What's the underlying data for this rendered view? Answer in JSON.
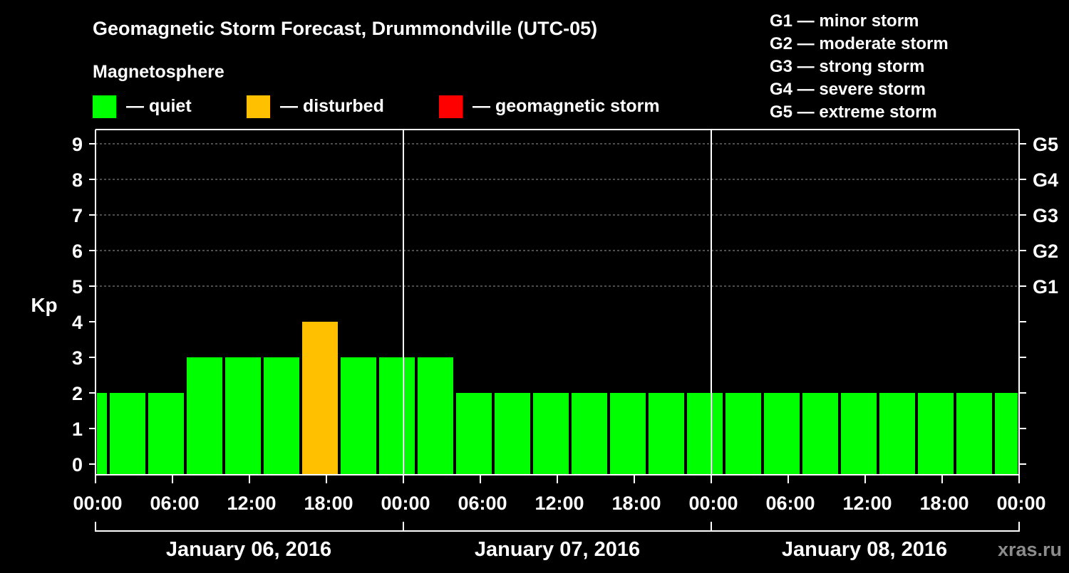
{
  "chart_data": {
    "type": "bar",
    "title": "Geomagnetic Storm Forecast, Drummondville (UTC-05)",
    "ylabel": "Kp",
    "ylim": [
      0,
      9
    ],
    "yticks": [
      0,
      1,
      2,
      3,
      4,
      5,
      6,
      7,
      8,
      9
    ],
    "grid": "dashed at Kp 5-9",
    "legend": {
      "heading": "Magnetosphere",
      "items": [
        {
          "label": "— quiet",
          "color": "#00ff00"
        },
        {
          "label": "— disturbed",
          "color": "#ffc000"
        },
        {
          "label": "— geomagnetic storm",
          "color": "#ff0000"
        }
      ]
    },
    "storm_scale_legend": [
      "G1 — minor storm",
      "G2 — moderate storm",
      "G3 — strong storm",
      "G4 — severe storm",
      "G5 — extreme storm"
    ],
    "right_axis": [
      {
        "label": "G1",
        "kp": 5
      },
      {
        "label": "G2",
        "kp": 6
      },
      {
        "label": "G3",
        "kp": 7
      },
      {
        "label": "G4",
        "kp": 8
      },
      {
        "label": "G5",
        "kp": 9
      }
    ],
    "x_range_hours": [
      0,
      72
    ],
    "x_tick_labels": [
      "00:00",
      "06:00",
      "12:00",
      "18:00",
      "00:00",
      "06:00",
      "12:00",
      "18:00",
      "00:00",
      "06:00",
      "12:00",
      "18:00",
      "00:00"
    ],
    "days": [
      "January 06, 2016",
      "January 07, 2016",
      "January 08, 2016"
    ],
    "bars": [
      {
        "start_hour": 0,
        "end_hour": 1,
        "kp": 2,
        "status": "quiet"
      },
      {
        "start_hour": 1,
        "end_hour": 4,
        "kp": 2,
        "status": "quiet"
      },
      {
        "start_hour": 4,
        "end_hour": 7,
        "kp": 2,
        "status": "quiet"
      },
      {
        "start_hour": 7,
        "end_hour": 10,
        "kp": 3,
        "status": "quiet"
      },
      {
        "start_hour": 10,
        "end_hour": 13,
        "kp": 3,
        "status": "quiet"
      },
      {
        "start_hour": 13,
        "end_hour": 16,
        "kp": 3,
        "status": "quiet"
      },
      {
        "start_hour": 16,
        "end_hour": 19,
        "kp": 4,
        "status": "disturbed"
      },
      {
        "start_hour": 19,
        "end_hour": 22,
        "kp": 3,
        "status": "quiet"
      },
      {
        "start_hour": 22,
        "end_hour": 25,
        "kp": 3,
        "status": "quiet"
      },
      {
        "start_hour": 25,
        "end_hour": 28,
        "kp": 3,
        "status": "quiet"
      },
      {
        "start_hour": 28,
        "end_hour": 31,
        "kp": 2,
        "status": "quiet"
      },
      {
        "start_hour": 31,
        "end_hour": 34,
        "kp": 2,
        "status": "quiet"
      },
      {
        "start_hour": 34,
        "end_hour": 37,
        "kp": 2,
        "status": "quiet"
      },
      {
        "start_hour": 37,
        "end_hour": 40,
        "kp": 2,
        "status": "quiet"
      },
      {
        "start_hour": 40,
        "end_hour": 43,
        "kp": 2,
        "status": "quiet"
      },
      {
        "start_hour": 43,
        "end_hour": 46,
        "kp": 2,
        "status": "quiet"
      },
      {
        "start_hour": 46,
        "end_hour": 49,
        "kp": 2,
        "status": "quiet"
      },
      {
        "start_hour": 49,
        "end_hour": 52,
        "kp": 2,
        "status": "quiet"
      },
      {
        "start_hour": 52,
        "end_hour": 55,
        "kp": 2,
        "status": "quiet"
      },
      {
        "start_hour": 55,
        "end_hour": 58,
        "kp": 2,
        "status": "quiet"
      },
      {
        "start_hour": 58,
        "end_hour": 61,
        "kp": 2,
        "status": "quiet"
      },
      {
        "start_hour": 61,
        "end_hour": 64,
        "kp": 2,
        "status": "quiet"
      },
      {
        "start_hour": 64,
        "end_hour": 67,
        "kp": 2,
        "status": "quiet"
      },
      {
        "start_hour": 67,
        "end_hour": 70,
        "kp": 2,
        "status": "quiet"
      },
      {
        "start_hour": 70,
        "end_hour": 72,
        "kp": 2,
        "status": "quiet"
      }
    ],
    "colors": {
      "quiet": "#00ff00",
      "disturbed": "#ffc000",
      "storm": "#ff0000",
      "background": "#000000",
      "axis": "#ffffff",
      "grid": "#9a9a9a"
    },
    "watermark": "xras.ru"
  }
}
